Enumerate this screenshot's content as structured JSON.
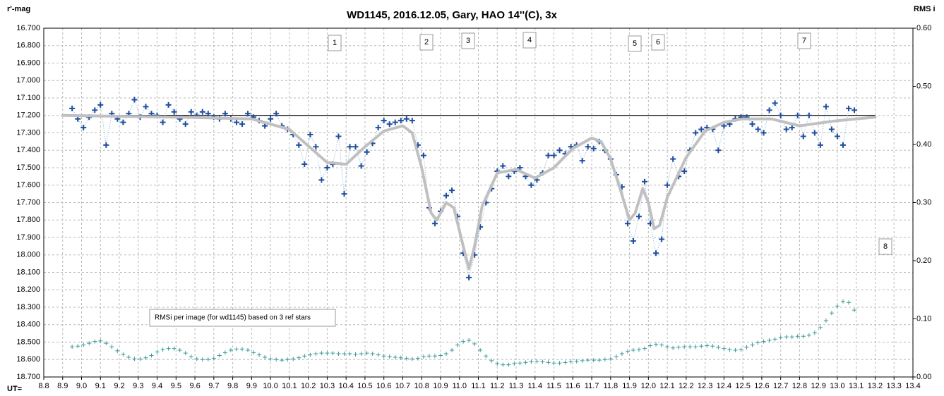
{
  "chart_data": {
    "type": "scatter",
    "title": "WD1145, 2016.12.05,  Gary, HAO 14''(C), 3x",
    "y_label": "r'-mag",
    "y2_label": "RMS i",
    "x_label": "UT=",
    "note": "RMSi per image (for wd1145) based on 3 ref stars",
    "annotations": [
      "1",
      "2",
      "3",
      "4",
      "5",
      "6",
      "7",
      "8"
    ],
    "xlim": [
      8.8,
      13.4
    ],
    "ylim": [
      16.7,
      18.7
    ],
    "y_reversed": true,
    "y2lim": [
      0,
      0.6
    ],
    "grid": true,
    "xticks": [
      8.8,
      8.9,
      {
        "value": 9,
        "label": "9.0"
      },
      9.1,
      9.2,
      9.3,
      9.4,
      9.5,
      9.6,
      9.7,
      9.8,
      9.9,
      {
        "value": 10,
        "label": "10.0"
      },
      10.1,
      10.2,
      10.3,
      10.4,
      10.5,
      10.6,
      10.7,
      10.8,
      10.9,
      {
        "value": 11,
        "label": "11.0"
      },
      11.1,
      11.2,
      11.3,
      11.4,
      11.5,
      11.6,
      11.7,
      11.8,
      11.9,
      {
        "value": 12,
        "label": "12.0"
      },
      12.1,
      12.2,
      12.3,
      12.4,
      12.5,
      12.6,
      12.7,
      12.8,
      12.9,
      {
        "value": 13,
        "label": "13.0"
      },
      13.1,
      13.2,
      13.3,
      13.4
    ],
    "yticks": [
      {
        "value": 16.7,
        "label": "16.700"
      },
      {
        "value": 16.8,
        "label": "16.800"
      },
      {
        "value": 16.9,
        "label": "16.900"
      },
      {
        "value": 17,
        "label": "17.000"
      },
      {
        "value": 17.1,
        "label": "17.100"
      },
      {
        "value": 17.2,
        "label": "17.200"
      },
      {
        "value": 17.3,
        "label": "17.300"
      },
      {
        "value": 17.4,
        "label": "17.400"
      },
      {
        "value": 17.5,
        "label": "17.500"
      },
      {
        "value": 17.6,
        "label": "17.600"
      },
      {
        "value": 17.7,
        "label": "17.700"
      },
      {
        "value": 17.8,
        "label": "17.800"
      },
      {
        "value": 17.9,
        "label": "17.900"
      },
      {
        "value": 18,
        "label": "18.000"
      },
      {
        "value": 18.1,
        "label": "18.100"
      },
      {
        "value": 18.2,
        "label": "18.200"
      },
      {
        "value": 18.3,
        "label": "18.300"
      },
      {
        "value": 18.4,
        "label": "18.400"
      },
      {
        "value": 18.5,
        "label": "18.500"
      },
      {
        "value": 18.6,
        "label": "18.600"
      },
      {
        "value": 18.7,
        "label": "18.700"
      }
    ],
    "y2ticks": [
      {
        "value": 0,
        "label": "0.00"
      },
      {
        "value": 0.1,
        "label": "0.10"
      },
      {
        "value": 0.2,
        "label": "0.20"
      },
      {
        "value": 0.3,
        "label": "0.30"
      },
      {
        "value": 0.4,
        "label": "0.40"
      },
      {
        "value": 0.5,
        "label": "0.50"
      },
      {
        "value": 0.6,
        "label": "0.60"
      }
    ],
    "reference_line": {
      "y": 17.2,
      "x": [
        8.9,
        13.2
      ],
      "color": "#000000"
    },
    "x": [
      8.95,
      8.98,
      9.01,
      9.04,
      9.07,
      9.1,
      9.13,
      9.16,
      9.19,
      9.22,
      9.25,
      9.28,
      9.31,
      9.34,
      9.37,
      9.4,
      9.43,
      9.46,
      9.49,
      9.52,
      9.55,
      9.58,
      9.61,
      9.64,
      9.67,
      9.7,
      9.73,
      9.76,
      9.79,
      9.82,
      9.85,
      9.88,
      9.91,
      9.94,
      9.97,
      10.0,
      10.03,
      10.06,
      10.09,
      10.12,
      10.15,
      10.18,
      10.21,
      10.24,
      10.27,
      10.3,
      10.33,
      10.36,
      10.39,
      10.42,
      10.45,
      10.48,
      10.51,
      10.54,
      10.57,
      10.6,
      10.63,
      10.66,
      10.69,
      10.72,
      10.75,
      10.78,
      10.81,
      10.84,
      10.87,
      10.9,
      10.93,
      10.96,
      10.99,
      11.02,
      11.05,
      11.08,
      11.11,
      11.14,
      11.17,
      11.2,
      11.23,
      11.26,
      11.29,
      11.32,
      11.35,
      11.38,
      11.41,
      11.44,
      11.47,
      11.5,
      11.53,
      11.56,
      11.59,
      11.62,
      11.65,
      11.68,
      11.71,
      11.74,
      11.77,
      11.8,
      11.83,
      11.86,
      11.89,
      11.92,
      11.95,
      11.98,
      12.01,
      12.04,
      12.07,
      12.1,
      12.13,
      12.16,
      12.19,
      12.22,
      12.25,
      12.28,
      12.31,
      12.34,
      12.37,
      12.4,
      12.43,
      12.46,
      12.49,
      12.52,
      12.55,
      12.58,
      12.61,
      12.64,
      12.67,
      12.7,
      12.73,
      12.76,
      12.79,
      12.82,
      12.85,
      12.88,
      12.91,
      12.94,
      12.97,
      13.0,
      13.03,
      13.06,
      13.09
    ],
    "series": [
      {
        "color": "#1f4e9e",
        "line_color": "#7fb0d8",
        "marker": "plus",
        "values": [
          17.16,
          17.22,
          17.27,
          17.21,
          17.17,
          17.14,
          17.37,
          17.19,
          17.22,
          17.24,
          17.19,
          17.11,
          17.21,
          17.15,
          17.19,
          17.2,
          17.24,
          17.14,
          17.18,
          17.22,
          17.25,
          17.18,
          17.2,
          17.18,
          17.19,
          17.21,
          17.22,
          17.19,
          17.22,
          17.24,
          17.25,
          17.19,
          17.21,
          17.23,
          17.26,
          17.22,
          17.19,
          17.26,
          17.28,
          17.31,
          17.37,
          17.48,
          17.31,
          17.38,
          17.57,
          17.5,
          17.48,
          17.32,
          17.65,
          17.38,
          17.38,
          17.49,
          17.41,
          17.36,
          17.27,
          17.23,
          17.25,
          17.24,
          17.23,
          17.22,
          17.23,
          17.37,
          17.43,
          17.73,
          17.82,
          17.75,
          17.66,
          17.63,
          17.78,
          17.99,
          18.13,
          18.0,
          17.84,
          17.7,
          17.62,
          17.52,
          17.49,
          17.55,
          17.52,
          17.5,
          17.55,
          17.6,
          17.57,
          17.53,
          17.43,
          17.43,
          17.4,
          17.42,
          17.38,
          17.37,
          17.46,
          17.38,
          17.39,
          17.35,
          17.4,
          17.45,
          17.54,
          17.61,
          17.82,
          17.92,
          17.78,
          17.58,
          17.82,
          17.99,
          17.91,
          17.6,
          17.45,
          17.55,
          17.52,
          17.4,
          17.3,
          17.28,
          17.27,
          17.28,
          17.4,
          17.26,
          17.25,
          17.22,
          17.21,
          17.21,
          17.25,
          17.28,
          17.3,
          17.17,
          17.13,
          17.2,
          17.28,
          17.27,
          17.2,
          17.32,
          17.2,
          17.3,
          17.37,
          17.15,
          17.28,
          17.32,
          17.37,
          17.16,
          17.17
        ]
      },
      {
        "color": "#3a9a9a",
        "marker": "plus-small",
        "axis": "y2",
        "values": [
          0.052,
          0.053,
          0.055,
          0.058,
          0.061,
          0.062,
          0.058,
          0.052,
          0.045,
          0.039,
          0.034,
          0.031,
          0.031,
          0.033,
          0.037,
          0.043,
          0.047,
          0.049,
          0.049,
          0.046,
          0.041,
          0.035,
          0.031,
          0.03,
          0.03,
          0.032,
          0.037,
          0.042,
          0.046,
          0.048,
          0.048,
          0.046,
          0.042,
          0.038,
          0.034,
          0.031,
          0.03,
          0.029,
          0.03,
          0.031,
          0.033,
          0.036,
          0.038,
          0.04,
          0.041,
          0.041,
          0.041,
          0.04,
          0.04,
          0.04,
          0.039,
          0.04,
          0.041,
          0.04,
          0.038,
          0.036,
          0.035,
          0.034,
          0.033,
          0.032,
          0.031,
          0.032,
          0.035,
          0.036,
          0.036,
          0.037,
          0.04,
          0.046,
          0.055,
          0.061,
          0.063,
          0.057,
          0.046,
          0.036,
          0.028,
          0.023,
          0.021,
          0.021,
          0.023,
          0.024,
          0.025,
          0.026,
          0.027,
          0.026,
          0.025,
          0.024,
          0.024,
          0.025,
          0.026,
          0.027,
          0.028,
          0.029,
          0.029,
          0.029,
          0.03,
          0.031,
          0.035,
          0.04,
          0.044,
          0.046,
          0.047,
          0.049,
          0.054,
          0.056,
          0.055,
          0.052,
          0.05,
          0.051,
          0.052,
          0.052,
          0.052,
          0.053,
          0.054,
          0.053,
          0.051,
          0.049,
          0.047,
          0.046,
          0.047,
          0.051,
          0.055,
          0.059,
          0.061,
          0.063,
          0.065,
          0.068,
          0.069,
          0.069,
          0.07,
          0.07,
          0.072,
          0.076,
          0.085,
          0.097,
          0.11,
          0.122,
          0.13,
          0.128,
          0.115
        ]
      },
      {
        "color": "#c0c0c0",
        "marker": "none",
        "x": [
          8.9,
          9.5,
          9.9,
          10.1,
          10.3,
          10.4,
          10.5,
          10.6,
          10.7,
          10.75,
          10.8,
          10.85,
          10.88,
          10.93,
          10.97,
          11.02,
          11.05,
          11.08,
          11.12,
          11.2,
          11.3,
          11.4,
          11.5,
          11.6,
          11.7,
          11.75,
          11.8,
          11.85,
          11.9,
          11.93,
          11.97,
          12.0,
          12.03,
          12.06,
          12.1,
          12.2,
          12.3,
          12.4,
          12.5,
          12.65,
          12.8,
          13.0,
          13.2
        ],
        "values": [
          17.2,
          17.21,
          17.22,
          17.28,
          17.47,
          17.48,
          17.38,
          17.29,
          17.26,
          17.3,
          17.5,
          17.76,
          17.8,
          17.7,
          17.73,
          17.95,
          18.08,
          17.95,
          17.72,
          17.53,
          17.51,
          17.56,
          17.5,
          17.39,
          17.33,
          17.35,
          17.45,
          17.62,
          17.8,
          17.76,
          17.62,
          17.7,
          17.85,
          17.83,
          17.67,
          17.44,
          17.29,
          17.24,
          17.22,
          17.22,
          17.26,
          17.23,
          17.21
        ]
      }
    ]
  }
}
